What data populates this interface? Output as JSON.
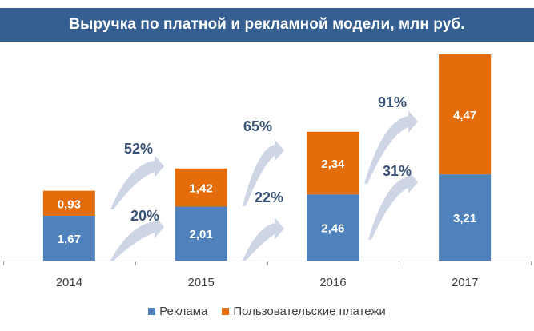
{
  "chart_data": {
    "type": "bar",
    "stacked": true,
    "title": "Выручка по платной и рекламной модели, млн руб.",
    "xlabel": "",
    "ylabel": "",
    "categories": [
      "2014",
      "2015",
      "2016",
      "2017"
    ],
    "series": [
      {
        "name": "Реклама",
        "color": "#4f81bd",
        "values": [
          1.67,
          2.01,
          2.46,
          3.21
        ],
        "labels": [
          "1,67",
          "2,01",
          "2,46",
          "3,21"
        ]
      },
      {
        "name": "Пользовательские платежи",
        "color": "#e46c0a",
        "values": [
          0.93,
          1.42,
          2.34,
          4.47
        ],
        "labels": [
          "0,93",
          "1,42",
          "2,34",
          "4,47"
        ]
      }
    ],
    "growth_annotations": {
      "Реклама": [
        "20%",
        "22%",
        "31%"
      ],
      "Пользовательские платежи": [
        "52%",
        "65%",
        "91%"
      ]
    },
    "ylim": [
      0,
      7.7
    ],
    "grid": false,
    "legend": "bottom"
  },
  "colors": {
    "title_band": "#365f91",
    "annotation_text": "#3a5275",
    "arrow": "#c9d1e3",
    "axis": "#a6a6a6"
  }
}
